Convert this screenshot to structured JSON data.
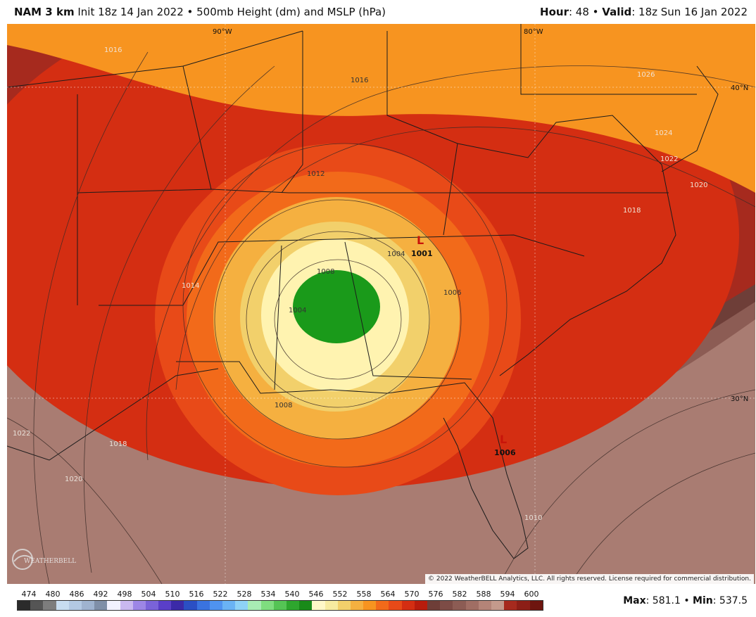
{
  "header": {
    "model": "NAM 3 km",
    "description": "Init 18z 14 Jan 2022 • 500mb Height (dm) and MSLP (hPa)",
    "hour_label": "Hour",
    "hour_value": ": 48 • ",
    "valid_label": "Valid",
    "valid_value": ": 18z Sun 16 Jan 2022"
  },
  "map": {
    "gridlines": {
      "lon_90": "90°W",
      "lon_80": "80°W",
      "lat_40": "40°N",
      "lat_30": "30°N"
    },
    "isobar_labels": [
      "1016",
      "1016",
      "1012",
      "1026",
      "1024",
      "1022",
      "1020",
      "1018",
      "1014",
      "1008",
      "1004",
      "1004",
      "1006",
      "1008",
      "1022",
      "1020",
      "1018",
      "1010"
    ],
    "lows": [
      {
        "symbol": "L",
        "pressure": "1001"
      },
      {
        "symbol": "L",
        "pressure": "1006"
      }
    ],
    "copyright": "© 2022 WeatherBELL Analytics, LLC. All rights reserved. License required for commercial distribution.",
    "logo_text": "WEATHERBELL"
  },
  "colorbar": {
    "labels": [
      "474",
      "480",
      "486",
      "492",
      "498",
      "504",
      "510",
      "516",
      "522",
      "528",
      "534",
      "540",
      "546",
      "552",
      "558",
      "564",
      "570",
      "576",
      "582",
      "588",
      "594",
      "600"
    ],
    "colors": [
      "#2b2b2b",
      "#555555",
      "#7d7d7d",
      "#c8ddf0",
      "#b3c9e3",
      "#9fb3cf",
      "#7f8fa8",
      "#f2f2ff",
      "#c9b8f0",
      "#9d86e6",
      "#7a63d9",
      "#5a3fc8",
      "#3b2aa8",
      "#2b4fc4",
      "#3a73e0",
      "#4f93f0",
      "#6ab3f5",
      "#8ed2f7",
      "#a8ecb4",
      "#7fdd7f",
      "#55c455",
      "#2ea62e",
      "#198a19",
      "#fff8c8",
      "#f7eba0",
      "#f2d06b",
      "#f5b040",
      "#f79420",
      "#f26a1a",
      "#e84a18",
      "#d42e12",
      "#b81c0c",
      "#6e3e38",
      "#7d4c46",
      "#8c5c54",
      "#a06e64",
      "#b48478",
      "#c49a8c",
      "#a62a1e",
      "#8c1e16",
      "#6e150f"
    ],
    "max_label": "Max",
    "max_value": ": 581.1 • ",
    "min_label": "Min",
    "min_value": ": 537.5"
  }
}
